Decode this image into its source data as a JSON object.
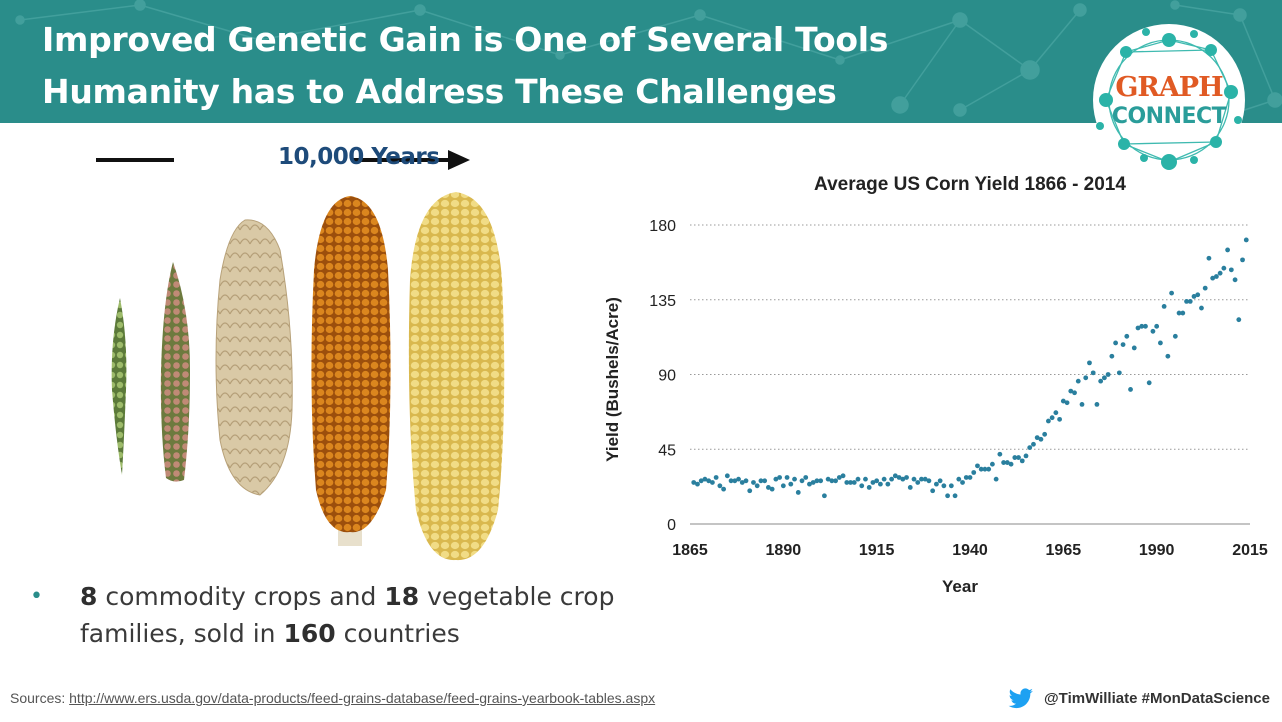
{
  "slide": {
    "title_line1": "Improved Genetic Gain is One of Several Tools",
    "title_line2": "Humanity has to Address These Challenges",
    "era_label": "10,000 Years",
    "bullet": {
      "n1": "8",
      "t1": " commodity crops and ",
      "n2": "18",
      "t2": " vegetable crop families, sold in ",
      "n3": "160",
      "t3": " countries"
    },
    "sources_label": "Sources:",
    "sources_url": "http://www.ers.usda.gov/data-products/feed-grains-database/feed-grains-yearbook-tables.aspx",
    "handle": "@TimWilliate #MonDataScience",
    "icons": {
      "twitter": "twitter-bird-icon"
    }
  },
  "logo": {
    "line1": "GRAPH",
    "line2": "CONNECT"
  },
  "colors": {
    "header": "#2a8d8a",
    "accent": "#2a8d8a",
    "points": "#2a7f9e",
    "logo_orange": "#e05a24"
  },
  "chart_data": {
    "type": "scatter",
    "title": "Average US Corn Yield 1866 - 2014",
    "xlabel": "Year",
    "ylabel": "Yield (Bushels/Acre)",
    "xlim": [
      1865,
      2015
    ],
    "ylim": [
      0,
      180
    ],
    "xticks": [
      1865,
      1890,
      1915,
      1940,
      1965,
      1990,
      2015
    ],
    "yticks": [
      0,
      45,
      90,
      135,
      180
    ],
    "grid": "horizontal dotted",
    "legend": "none",
    "series": [
      {
        "x": [
          1866,
          1867,
          1868,
          1869,
          1870,
          1871,
          1872,
          1873,
          1874,
          1875,
          1876,
          1877,
          1878,
          1879,
          1880,
          1881,
          1882,
          1883,
          1884,
          1885,
          1886,
          1887,
          1888,
          1889,
          1890,
          1891,
          1892,
          1893,
          1894,
          1895,
          1896,
          1897,
          1898,
          1899,
          1900,
          1901,
          1902,
          1903,
          1904,
          1905,
          1906,
          1907,
          1908,
          1909,
          1910,
          1911,
          1912,
          1913,
          1914,
          1915,
          1916,
          1917,
          1918,
          1919,
          1920,
          1921,
          1922,
          1923,
          1924,
          1925,
          1926,
          1927,
          1928,
          1929,
          1930,
          1931,
          1932,
          1933,
          1934,
          1935,
          1936,
          1937,
          1938,
          1939,
          1940,
          1941,
          1942,
          1943,
          1944,
          1945,
          1946,
          1947,
          1948,
          1949,
          1950,
          1951,
          1952,
          1953,
          1954,
          1955,
          1956,
          1957,
          1958,
          1959,
          1960,
          1961,
          1962,
          1963,
          1964,
          1965,
          1966,
          1967,
          1968,
          1969,
          1970,
          1971,
          1972,
          1973,
          1974,
          1975,
          1976,
          1977,
          1978,
          1979,
          1980,
          1981,
          1982,
          1983,
          1984,
          1985,
          1986,
          1987,
          1988,
          1989,
          1990,
          1991,
          1992,
          1993,
          1994,
          1995,
          1996,
          1997,
          1998,
          1999,
          2000,
          2001,
          2002,
          2003,
          2004,
          2005,
          2006,
          2007,
          2008,
          2009,
          2010,
          2011,
          2012,
          2013,
          2014
        ],
        "y": [
          25,
          24,
          26,
          27,
          26,
          25,
          28,
          23,
          21,
          29,
          26,
          26,
          27,
          25,
          26,
          20,
          25,
          23,
          26,
          26,
          22,
          21,
          27,
          28,
          23,
          28,
          24,
          27,
          19,
          26,
          28,
          24,
          25,
          26,
          26,
          17,
          27,
          26,
          26,
          28,
          29,
          25,
          25,
          25,
          27,
          23,
          27,
          22,
          25,
          26,
          24,
          27,
          24,
          27,
          29,
          28,
          27,
          28,
          22,
          27,
          25,
          27,
          27,
          26,
          20,
          24,
          26,
          23,
          17,
          23,
          17,
          27,
          25,
          28,
          28,
          31,
          35,
          33,
          33,
          33,
          36,
          27,
          42,
          37,
          37,
          36,
          40,
          40,
          38,
          41,
          46,
          48,
          52,
          51,
          54,
          62,
          64,
          67,
          63,
          74,
          73,
          80,
          79,
          86,
          72,
          88,
          97,
          91,
          72,
          86,
          88,
          90,
          101,
          109,
          91,
          108,
          113,
          81,
          106,
          118,
          119,
          119,
          85,
          116,
          119,
          109,
          131,
          101,
          139,
          113,
          127,
          127,
          134,
          134,
          137,
          138,
          130,
          142,
          160,
          148,
          149,
          151,
          154,
          165,
          153,
          147,
          123,
          159,
          171
        ]
      }
    ]
  }
}
